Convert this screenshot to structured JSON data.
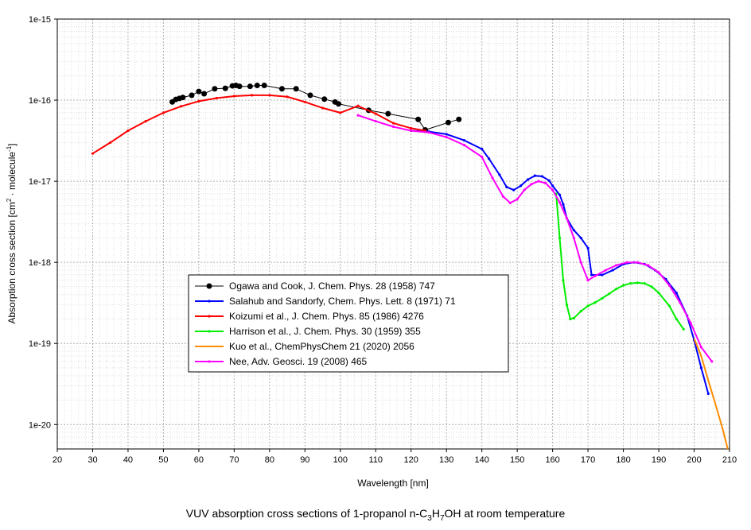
{
  "chart_data": {
    "type": "line",
    "xlabel": "Wavelength [nm]",
    "ylabel": {
      "prefix": "Absorption cross section [cm",
      "sup1": "2",
      "middle": " · molecule",
      "sup2": "-1",
      "suffix": "]"
    },
    "log_y": true,
    "xlim": [
      20,
      210
    ],
    "ylim": [
      5e-21,
      1e-15
    ],
    "x_ticks": [
      "20",
      "30",
      "40",
      "50",
      "60",
      "70",
      "80",
      "90",
      "100",
      "110",
      "120",
      "130",
      "140",
      "150",
      "160",
      "170",
      "180",
      "190",
      "200",
      "210"
    ],
    "y_ticks": [
      "1e-20",
      "1e-19",
      "1e-18",
      "1e-17",
      "1e-16",
      "1e-15"
    ],
    "grid": true,
    "legend_position": "center-left",
    "series": [
      {
        "name": "Ogawa and Cook, J. Chem. Phys. 28 (1958) 747",
        "color": "#000000",
        "marker": "circle-large",
        "x": [
          52.5,
          53.5,
          54.5,
          55.5,
          58,
          60,
          61.5,
          64.5,
          67.5,
          69.5,
          70.5,
          71.5,
          74.5,
          76.5,
          78.5,
          83.5,
          87.5,
          91.5,
          95.5,
          98.5,
          99.5,
          108,
          113.5,
          122,
          124,
          130.5,
          133.5
        ],
        "y": [
          9.5e-17,
          1.02e-16,
          1.05e-16,
          1.08e-16,
          1.15e-16,
          1.28e-16,
          1.2e-16,
          1.38e-16,
          1.4e-16,
          1.5e-16,
          1.52e-16,
          1.48e-16,
          1.48e-16,
          1.52e-16,
          1.52e-16,
          1.38e-16,
          1.38e-16,
          1.15e-16,
          1.03e-16,
          9.5e-17,
          9e-17,
          7.5e-17,
          6.8e-17,
          5.8e-17,
          4.3e-17,
          5.3e-17,
          5.8e-17
        ]
      },
      {
        "name": "Salahub and Sandorfy, Chem. Phys. Lett. 8 (1971) 71",
        "color": "#0000ff",
        "marker": "dot",
        "x": [
          120,
          125,
          130,
          135,
          140,
          142,
          145,
          147,
          149,
          151,
          153,
          155,
          157,
          159,
          160,
          162,
          163,
          164,
          166,
          168,
          170,
          171,
          174,
          177,
          180,
          183,
          186,
          189,
          192,
          195,
          198,
          200,
          202,
          204
        ],
        "y": [
          4.2e-17,
          4.1e-17,
          3.8e-17,
          3.2e-17,
          2.5e-17,
          1.9e-17,
          1.2e-17,
          8.5e-18,
          7.8e-18,
          8.8e-18,
          1.05e-17,
          1.17e-17,
          1.15e-17,
          1.02e-17,
          8.8e-18,
          6.8e-18,
          5.2e-18,
          3.5e-18,
          2.5e-18,
          2e-18,
          1.5e-18,
          7e-19,
          7e-19,
          8e-19,
          9.5e-19,
          1e-18,
          9.5e-19,
          8e-19,
          6.2e-19,
          4.2e-19,
          2.2e-19,
          1.1e-19,
          5e-20,
          2.4e-20
        ]
      },
      {
        "name": "Koizumi et al., J. Chem. Phys. 85 (1986) 4276",
        "color": "#ff0000",
        "marker": "dot",
        "x": [
          30,
          35,
          40,
          45,
          50,
          55,
          60,
          65,
          70,
          75,
          80,
          85,
          90,
          95,
          100,
          105,
          110,
          115,
          120,
          124
        ],
        "y": [
          2.2e-17,
          3e-17,
          4.2e-17,
          5.5e-17,
          7e-17,
          8.4e-17,
          9.7e-17,
          1.06e-16,
          1.12e-16,
          1.15e-16,
          1.15e-16,
          1.1e-16,
          9.5e-17,
          8e-17,
          7e-17,
          8.5e-17,
          6.8e-17,
          5.2e-17,
          4.5e-17,
          4.2e-17
        ]
      },
      {
        "name": "Harrison et al., J. Chem. Phys. 30 (1959) 355",
        "color": "#00ee00",
        "marker": "dot",
        "x": [
          161,
          162,
          163,
          164,
          165,
          166,
          168,
          170,
          172,
          174,
          176,
          178,
          180,
          182,
          184,
          186,
          188,
          190,
          193,
          195,
          197
        ],
        "y": [
          7e-18,
          2e-18,
          6e-19,
          3e-19,
          2e-19,
          2.05e-19,
          2.5e-19,
          2.9e-19,
          3.2e-19,
          3.6e-19,
          4.1e-19,
          4.7e-19,
          5.2e-19,
          5.5e-19,
          5.6e-19,
          5.5e-19,
          5e-19,
          4.2e-19,
          2.9e-19,
          2e-19,
          1.5e-19
        ]
      },
      {
        "name": "Kuo et al., ChemPhysChem 21 (2020) 2056",
        "color": "#ff8c00",
        "marker": "none",
        "x": [
          200,
          202,
          204,
          206,
          208,
          209.5
        ],
        "y": [
          1.15e-19,
          7e-20,
          3.5e-20,
          1.8e-20,
          9e-21,
          5e-21
        ]
      },
      {
        "name": "Nee, Adv. Geosci. 19 (2008) 465",
        "color": "#ff00ff",
        "marker": "dot",
        "x": [
          105,
          110,
          115,
          120,
          125,
          130,
          135,
          140,
          143,
          146,
          148,
          150,
          152,
          154,
          156,
          158,
          160,
          162,
          164,
          166,
          168,
          170,
          172,
          175,
          178,
          181,
          184,
          187,
          190,
          193,
          196,
          199,
          202,
          205
        ],
        "y": [
          6.5e-17,
          5.5e-17,
          4.7e-17,
          4.2e-17,
          4e-17,
          3.5e-17,
          2.8e-17,
          2e-17,
          1.1e-17,
          6.5e-18,
          5.4e-18,
          6e-18,
          7.8e-18,
          9.2e-18,
          1e-17,
          9.5e-18,
          7.8e-18,
          5.5e-18,
          3.5e-18,
          2e-18,
          1e-18,
          6e-19,
          6.8e-19,
          8e-19,
          9.2e-19,
          1e-18,
          1e-18,
          9.2e-19,
          7.5e-19,
          5.2e-19,
          3.2e-19,
          1.8e-19,
          9e-20,
          6e-20
        ]
      }
    ],
    "caption": {
      "prefix": "VUV absorption cross sections of 1-propanol n-C",
      "sub1": "3",
      "mid1": "H",
      "sub2": "7",
      "suffix": "OH at room temperature"
    }
  }
}
